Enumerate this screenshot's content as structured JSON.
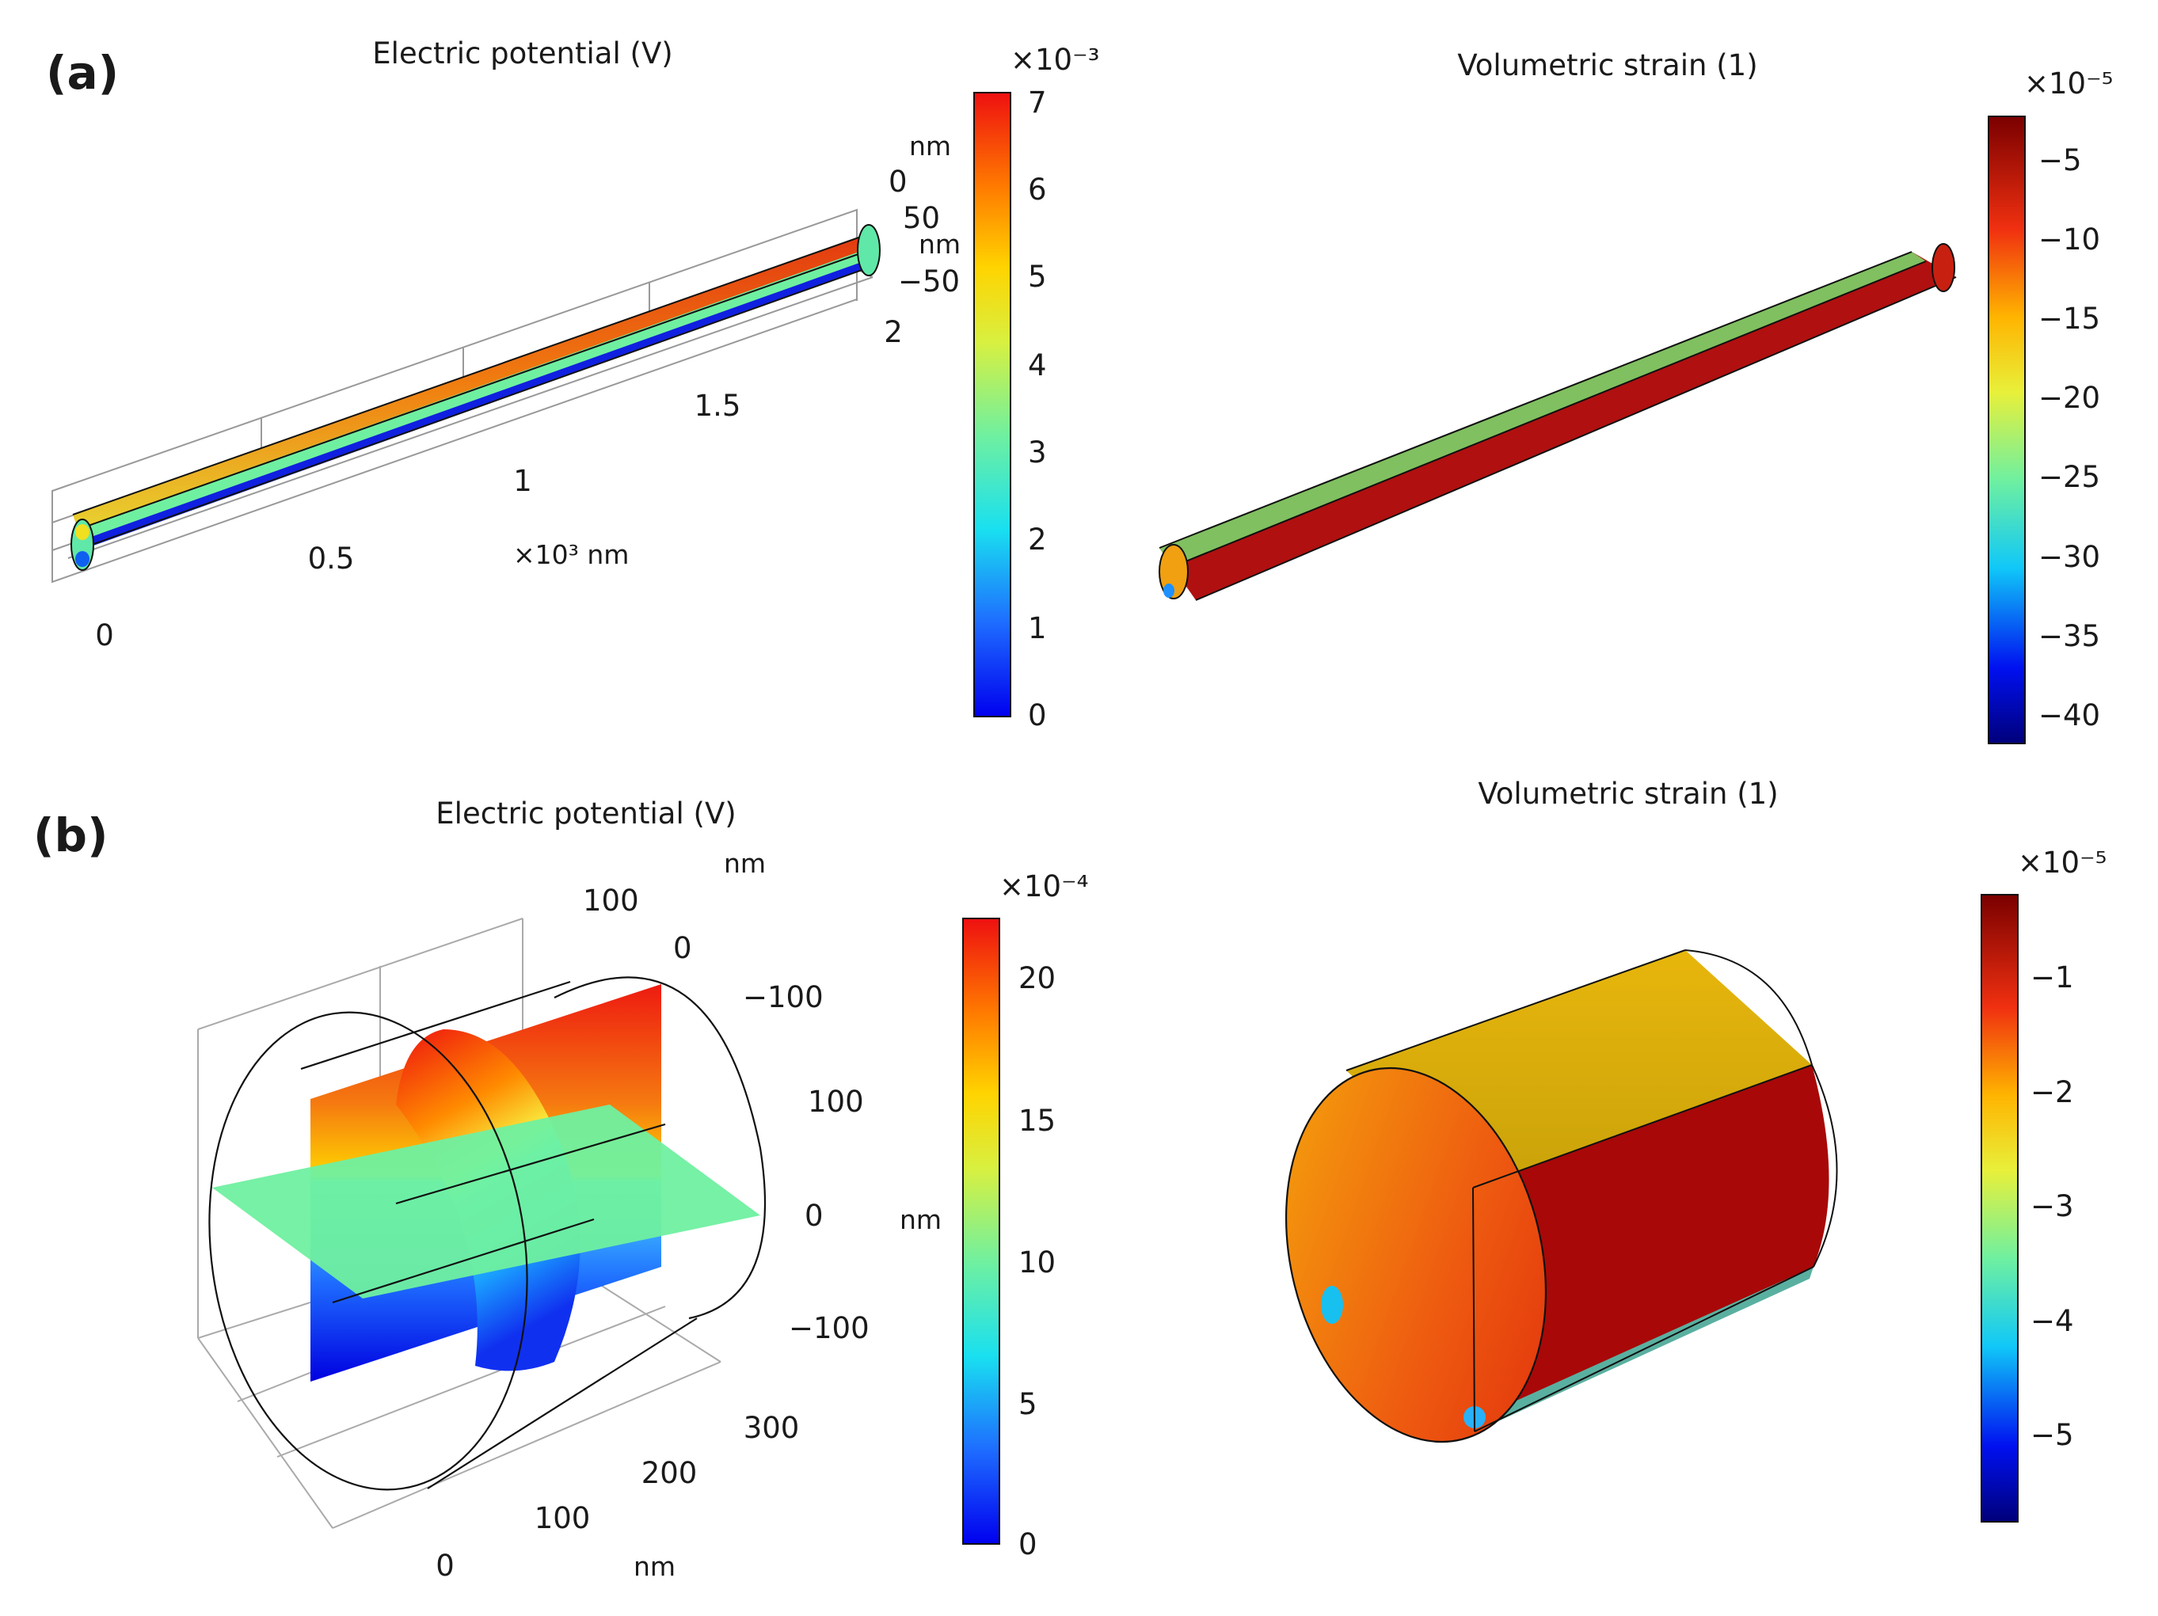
{
  "panels": [
    {
      "label": "(a)",
      "potential": {
        "title": "Electric potential (V)",
        "colorbar": {
          "multiplier": "×10⁻³",
          "ticks": [
            "7",
            "6",
            "5",
            "4",
            "3",
            "2",
            "1",
            "0"
          ],
          "min": 0,
          "max": 7.3,
          "colormap": "jet"
        },
        "axes": {
          "x_ticks": [
            "0",
            "0.5",
            "1",
            "1.5",
            "2"
          ],
          "x_unit": "×10³ nm",
          "y_ticks": [
            "0",
            "50",
            "−50"
          ],
          "y_unit": "nm",
          "z_unit": "nm"
        }
      },
      "strain": {
        "title": "Volumetric strain (1)",
        "colorbar": {
          "multiplier": "×10⁻⁵",
          "ticks": [
            "−5",
            "−10",
            "−15",
            "−20",
            "−25",
            "−30",
            "−35",
            "−40"
          ],
          "min": -42,
          "max": -2,
          "colormap": "jet"
        }
      }
    },
    {
      "label": "(b)",
      "potential": {
        "title": "Electric potential (V)",
        "colorbar": {
          "multiplier": "×10⁻⁴",
          "ticks": [
            "20",
            "15",
            "10",
            "5",
            "0"
          ],
          "min": 0,
          "max": 22,
          "colormap": "jet"
        },
        "axes": {
          "x_ticks": [
            "0",
            "100",
            "200",
            "300"
          ],
          "x_unit": "nm",
          "y_ticks": [
            "100",
            "0",
            "−100"
          ],
          "y_unit": "nm",
          "z_ticks": [
            "100",
            "0",
            "−100"
          ],
          "z_unit": "nm"
        }
      },
      "strain": {
        "title": "Volumetric strain (1)",
        "colorbar": {
          "multiplier": "×10⁻⁵",
          "ticks": [
            "−1",
            "−2",
            "−3",
            "−4",
            "−5"
          ],
          "min": -5.8,
          "max": -0.4,
          "colormap": "jet"
        }
      }
    }
  ]
}
